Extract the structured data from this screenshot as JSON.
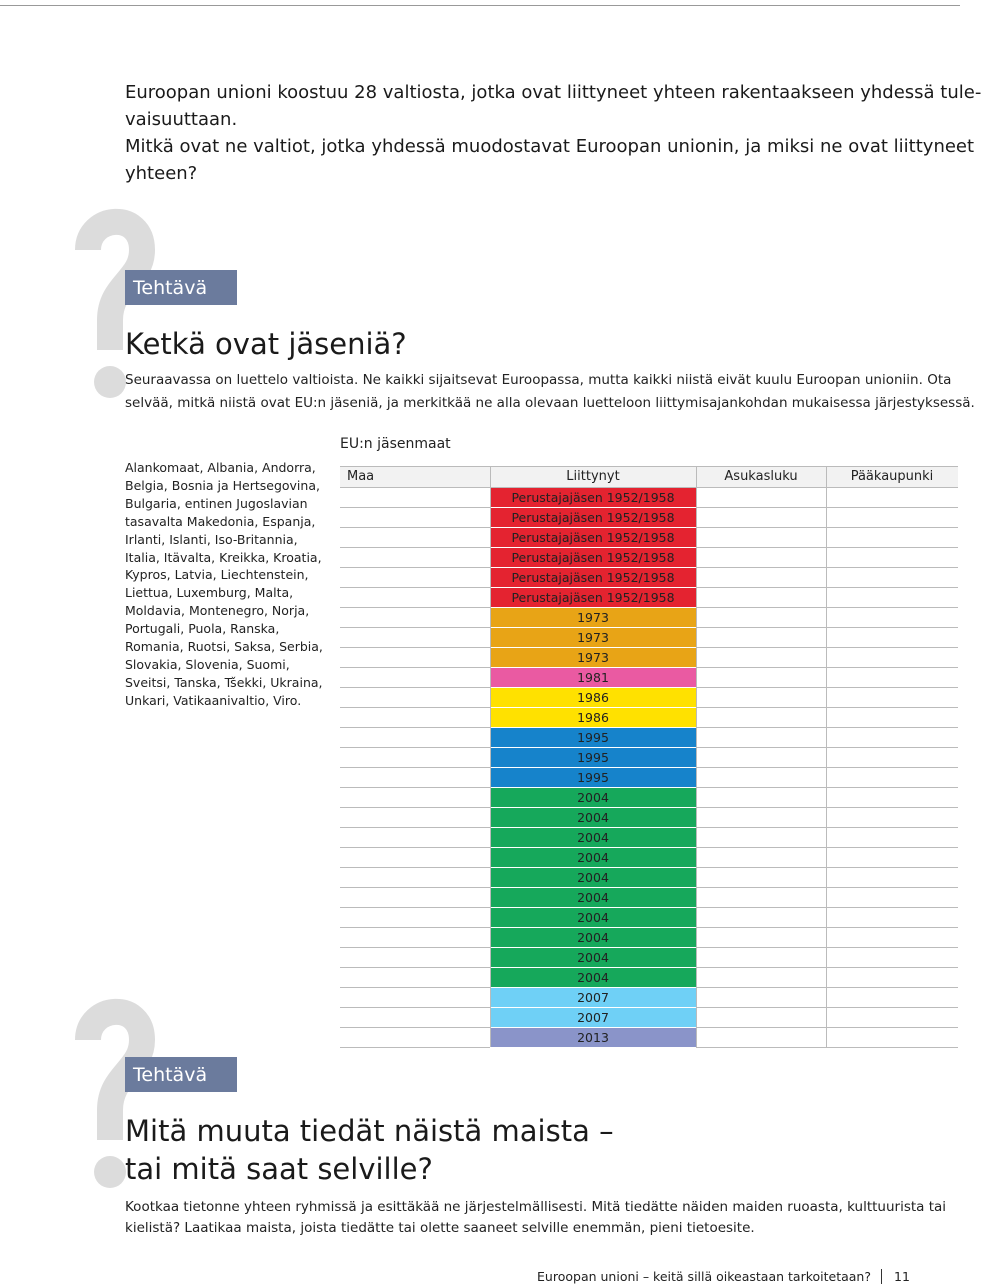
{
  "intro": {
    "lines": [
      "Euroopan unioni koostuu 28 valtiosta, jotka ovat liittyneet yhteen rakentaakseen yhdessä tule-",
      "vaisuuttaan.",
      "Mitkä ovat ne valtiot, jotka yhdessä muodostavat Euroopan unionin, ja miksi ne ovat liittyneet",
      "yhteen?"
    ]
  },
  "task1": {
    "label": "Tehtävä",
    "heading": "Ketkä ovat jäseniä?",
    "lines": [
      "Seuraavassa on luettelo valtioista. Ne kaikki sijaitsevat Euroopassa, mutta kaikki niistä eivät kuulu Euroopan unioniin. Ota",
      "selvää, mitkä niistä ovat EU:n jäseniä, ja merkitkää ne alla olevaan luetteloon liittymisajankohdan mukaisessa järjestyksessä."
    ]
  },
  "country_list": {
    "lines": [
      "Alankomaat, Albania, Andorra,",
      "Belgia, Bosnia ja Hertsegovina,",
      "Bulgaria, entinen Jugoslavian",
      "tasavalta Makedonia, Espanja,",
      "Irlanti, Islanti, Iso-Britannia,",
      "Italia, Itävalta, Kreikka, Kroatia,",
      "Kypros, Latvia, Liechtenstein,",
      "Liettua, Luxemburg, Malta,",
      "Moldavia, Montenegro, Norja,",
      "Portugali, Puola, Ranska,",
      "Romania, Ruotsi, Saksa, Serbia,",
      "Slovakia, Slovenia, Suomi,",
      "Sveitsi, Tanska, Tšekki, Ukraina,",
      "Unkari, Vatikaanivaltio, Viro."
    ]
  },
  "table": {
    "caption": "EU:n jäsenmaat",
    "headers": [
      "Maa",
      "Liittynyt",
      "Asukasluku",
      "Pääkaupunki"
    ],
    "rows": [
      {
        "joined": "Perustajajäsen 1952/1958",
        "color": "#e42330"
      },
      {
        "joined": "Perustajajäsen 1952/1958",
        "color": "#e42330"
      },
      {
        "joined": "Perustajajäsen 1952/1958",
        "color": "#e42330"
      },
      {
        "joined": "Perustajajäsen 1952/1958",
        "color": "#e42330"
      },
      {
        "joined": "Perustajajäsen 1952/1958",
        "color": "#e42330"
      },
      {
        "joined": "Perustajajäsen 1952/1958",
        "color": "#e42330"
      },
      {
        "joined": "1973",
        "color": "#e8a416"
      },
      {
        "joined": "1973",
        "color": "#e8a416"
      },
      {
        "joined": "1973",
        "color": "#e8a416"
      },
      {
        "joined": "1981",
        "color": "#ea5aa2"
      },
      {
        "joined": "1986",
        "color": "#ffe100"
      },
      {
        "joined": "1986",
        "color": "#ffe100"
      },
      {
        "joined": "1995",
        "color": "#1683cb"
      },
      {
        "joined": "1995",
        "color": "#1683cb"
      },
      {
        "joined": "1995",
        "color": "#1683cb"
      },
      {
        "joined": "2004",
        "color": "#16a85b"
      },
      {
        "joined": "2004",
        "color": "#16a85b"
      },
      {
        "joined": "2004",
        "color": "#16a85b"
      },
      {
        "joined": "2004",
        "color": "#16a85b"
      },
      {
        "joined": "2004",
        "color": "#16a85b"
      },
      {
        "joined": "2004",
        "color": "#16a85b"
      },
      {
        "joined": "2004",
        "color": "#16a85b"
      },
      {
        "joined": "2004",
        "color": "#16a85b"
      },
      {
        "joined": "2004",
        "color": "#16a85b"
      },
      {
        "joined": "2004",
        "color": "#16a85b"
      },
      {
        "joined": "2007",
        "color": "#6fd0f6"
      },
      {
        "joined": "2007",
        "color": "#6fd0f6"
      },
      {
        "joined": "2013",
        "color": "#8a94c9"
      }
    ]
  },
  "task2": {
    "label": "Tehtävä",
    "heading_lines": [
      "Mitä muuta tiedät näistä maista –",
      "tai mitä saat selville?"
    ],
    "lines": [
      "Kootkaa tietonne yhteen ryhmissä ja esittäkää ne järjestelmällisesti. Mitä tiedätte näiden maiden ruoasta, kulttuurista tai",
      "kielistä? Laatikaa maista, joista tiedätte tai olette saaneet selville enemmän, pieni tietoesite."
    ]
  },
  "footer": {
    "title": "Euroopan unioni – keitä sillä oikeastaan tarkoitetaan?",
    "page": "11"
  }
}
